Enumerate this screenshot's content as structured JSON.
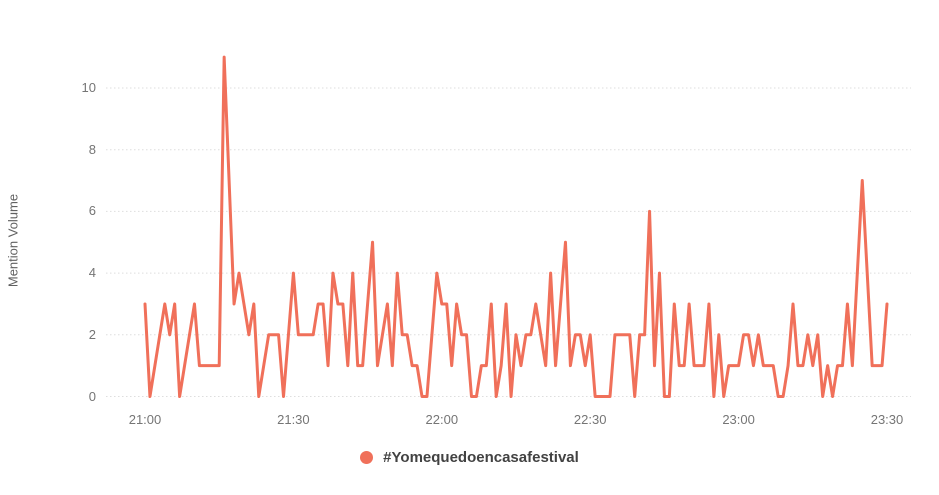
{
  "chart_data": {
    "type": "line",
    "title": "",
    "xlabel": "",
    "ylabel": "Mention Volume",
    "x_axis": {
      "start": "21:00",
      "end": "23:30",
      "step_minutes": 1,
      "tick_labels": [
        "21:00",
        "21:30",
        "22:00",
        "22:30",
        "23:00",
        "23:30"
      ]
    },
    "y_axis": {
      "ticks": [
        0,
        2,
        4,
        6,
        8,
        10
      ],
      "min": 0,
      "max_data_value": 11
    },
    "grid": "horizontal dotted lines on",
    "legend_position": "bottom-center",
    "series": [
      {
        "name": "#Yomequedoencasafestival",
        "color": "#F0705A",
        "marker": "circle",
        "values": [
          3,
          0,
          1,
          2,
          3,
          2,
          3,
          0,
          1,
          2,
          3,
          1,
          1,
          1,
          1,
          1,
          11,
          7,
          3,
          4,
          3,
          2,
          3,
          0,
          1,
          2,
          2,
          2,
          0,
          2,
          4,
          2,
          2,
          2,
          2,
          3,
          3,
          1,
          4,
          3,
          3,
          1,
          4,
          1,
          1,
          3,
          5,
          1,
          2,
          3,
          1,
          4,
          2,
          2,
          1,
          1,
          0,
          0,
          2,
          4,
          3,
          3,
          1,
          3,
          2,
          2,
          0,
          0,
          1,
          1,
          3,
          0,
          1,
          3,
          0,
          2,
          1,
          2,
          2,
          3,
          2,
          1,
          4,
          1,
          3,
          5,
          1,
          2,
          2,
          1,
          2,
          0,
          0,
          0,
          0,
          2,
          2,
          2,
          2,
          0,
          2,
          2,
          6,
          1,
          4,
          0,
          0,
          3,
          1,
          1,
          3,
          1,
          1,
          1,
          3,
          0,
          2,
          0,
          1,
          1,
          1,
          2,
          2,
          1,
          2,
          1,
          1,
          1,
          0,
          0,
          1,
          3,
          1,
          1,
          2,
          1,
          2,
          0,
          1,
          0,
          1,
          1,
          3,
          1,
          4,
          7,
          4,
          1,
          1,
          1,
          3
        ]
      }
    ]
  },
  "legend": {
    "label": "#Yomequedoencasafestival",
    "dot_color": "#F0705A"
  },
  "colors": {
    "line": "#F0705A",
    "gridline": "#DEDEDE",
    "tick_label": "#757575",
    "axis_title": "#616161",
    "legend_text": "#424242",
    "background": "#FFFFFF"
  }
}
